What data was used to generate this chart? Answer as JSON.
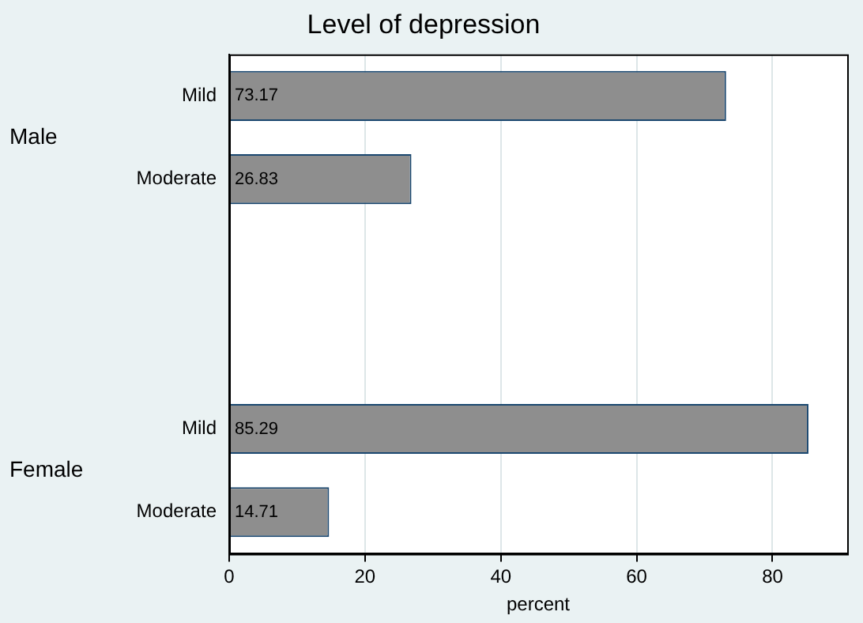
{
  "chart_data": {
    "type": "bar",
    "orientation": "horizontal",
    "title": "Level of depression",
    "xlabel": "percent",
    "categories": [
      "Mild",
      "Moderate",
      null,
      null,
      "Mild",
      "Moderate"
    ],
    "values": [
      73.17,
      26.83,
      null,
      null,
      85.29,
      14.71
    ],
    "color": "#8e8e8e",
    "xlim": [
      0,
      91
    ],
    "xticks": [
      0,
      20,
      40,
      60,
      80
    ],
    "grid": "x",
    "data_labels": true,
    "annotations": [
      "Male",
      "Female"
    ]
  }
}
